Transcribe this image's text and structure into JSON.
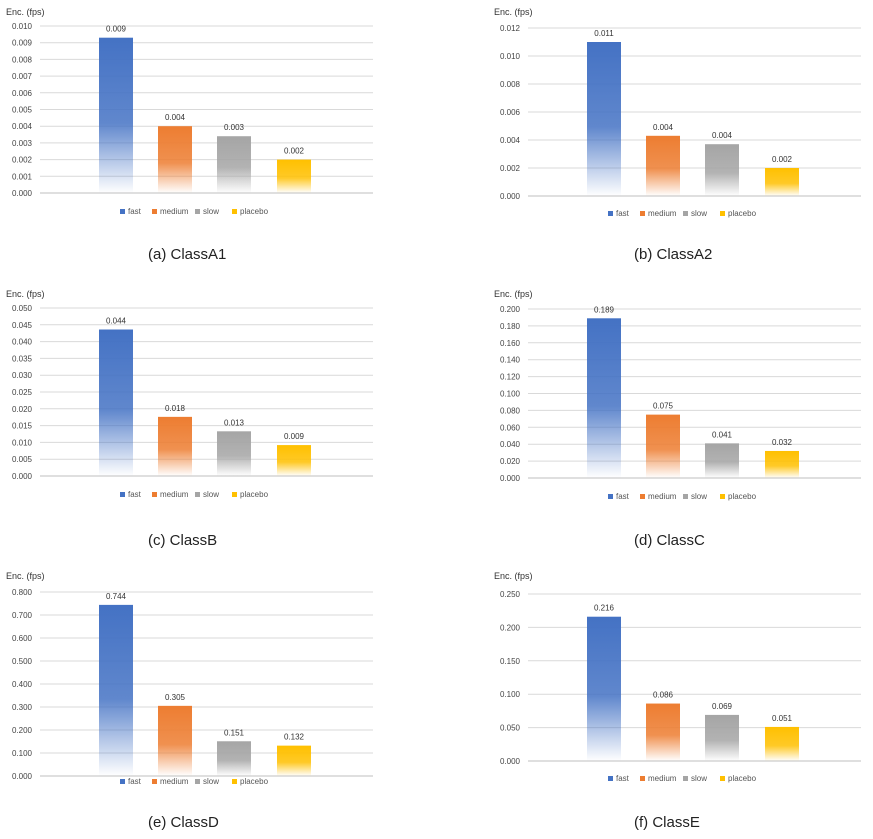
{
  "legend": [
    "fast",
    "medium",
    "slow",
    "placebo"
  ],
  "colors": {
    "fast": "#4472c4",
    "medium": "#ed7d31",
    "slow": "#a5a5a5",
    "placebo": "#ffc000",
    "gridline": "#d9d9d9",
    "axis": "#bfbfbf"
  },
  "chart_data": [
    {
      "type": "bar",
      "caption": "(a)  ClassA1",
      "ylabel": "Enc. (fps)",
      "categories": [
        "fast",
        "medium",
        "slow",
        "placebo"
      ],
      "values": [
        0.009,
        0.004,
        0.003,
        0.002
      ],
      "plotted_values": [
        0.0093,
        0.004,
        0.0034,
        0.002
      ],
      "data_labels": [
        "0.009",
        "0.004",
        "0.003",
        "0.002"
      ],
      "ylim": [
        0,
        0.01
      ],
      "yticks": [
        "0.000",
        "0.001",
        "0.002",
        "0.003",
        "0.004",
        "0.005",
        "0.006",
        "0.007",
        "0.008",
        "0.009",
        "0.010"
      ],
      "grid": true,
      "legend_position": "bottom"
    },
    {
      "type": "bar",
      "caption": "(b)  ClassA2",
      "ylabel": "Enc. (fps)",
      "categories": [
        "fast",
        "medium",
        "slow",
        "placebo"
      ],
      "values": [
        0.011,
        0.004,
        0.004,
        0.002
      ],
      "plotted_values": [
        0.011,
        0.0043,
        0.0037,
        0.002
      ],
      "data_labels": [
        "0.011",
        "0.004",
        "0.004",
        "0.002"
      ],
      "ylim": [
        0,
        0.012
      ],
      "yticks": [
        "0.000",
        "0.002",
        "0.004",
        "0.006",
        "0.008",
        "0.010",
        "0.012"
      ],
      "grid": true,
      "legend_position": "bottom"
    },
    {
      "type": "bar",
      "caption": "(c)  ClassB",
      "ylabel": "Enc. (fps)",
      "categories": [
        "fast",
        "medium",
        "slow",
        "placebo"
      ],
      "values": [
        0.044,
        0.018,
        0.013,
        0.009
      ],
      "plotted_values": [
        0.0436,
        0.0176,
        0.0133,
        0.0092
      ],
      "data_labels": [
        "0.044",
        "0.018",
        "0.013",
        "0.009"
      ],
      "ylim": [
        0,
        0.05
      ],
      "yticks": [
        "0.000",
        "0.005",
        "0.010",
        "0.015",
        "0.020",
        "0.025",
        "0.030",
        "0.035",
        "0.040",
        "0.045",
        "0.050"
      ],
      "grid": true,
      "legend_position": "bottom"
    },
    {
      "type": "bar",
      "caption": "(d)  ClassC",
      "ylabel": "Enc. (fps)",
      "categories": [
        "fast",
        "medium",
        "slow",
        "placebo"
      ],
      "values": [
        0.189,
        0.075,
        0.041,
        0.032
      ],
      "plotted_values": [
        0.189,
        0.075,
        0.041,
        0.032
      ],
      "data_labels": [
        "0.189",
        "0.075",
        "0.041",
        "0.032"
      ],
      "ylim": [
        0,
        0.2
      ],
      "yticks": [
        "0.000",
        "0.020",
        "0.040",
        "0.060",
        "0.080",
        "0.100",
        "0.120",
        "0.140",
        "0.160",
        "0.180",
        "0.200"
      ],
      "grid": true,
      "legend_position": "bottom"
    },
    {
      "type": "bar",
      "caption": "(e)  ClassD",
      "ylabel": "Enc. (fps)",
      "categories": [
        "fast",
        "medium",
        "slow",
        "placebo"
      ],
      "values": [
        0.744,
        0.305,
        0.151,
        0.132
      ],
      "plotted_values": [
        0.744,
        0.305,
        0.151,
        0.132
      ],
      "data_labels": [
        "0.744",
        "0.305",
        "0.151",
        "0.132"
      ],
      "ylim": [
        0,
        0.8
      ],
      "yticks": [
        "0.000",
        "0.100",
        "0.200",
        "0.300",
        "0.400",
        "0.500",
        "0.600",
        "0.700",
        "0.800"
      ],
      "grid": true,
      "legend_position": "bottom"
    },
    {
      "type": "bar",
      "caption": "(f)  ClassE",
      "ylabel": "Enc. (fps)",
      "categories": [
        "fast",
        "medium",
        "slow",
        "placebo"
      ],
      "values": [
        0.216,
        0.086,
        0.069,
        0.051
      ],
      "plotted_values": [
        0.216,
        0.086,
        0.069,
        0.051
      ],
      "data_labels": [
        "0.216",
        "0.086",
        "0.069",
        "0.051"
      ],
      "ylim": [
        0,
        0.25
      ],
      "yticks": [
        "0.000",
        "0.050",
        "0.100",
        "0.150",
        "0.200",
        "0.250"
      ],
      "grid": true,
      "legend_position": "bottom"
    }
  ]
}
